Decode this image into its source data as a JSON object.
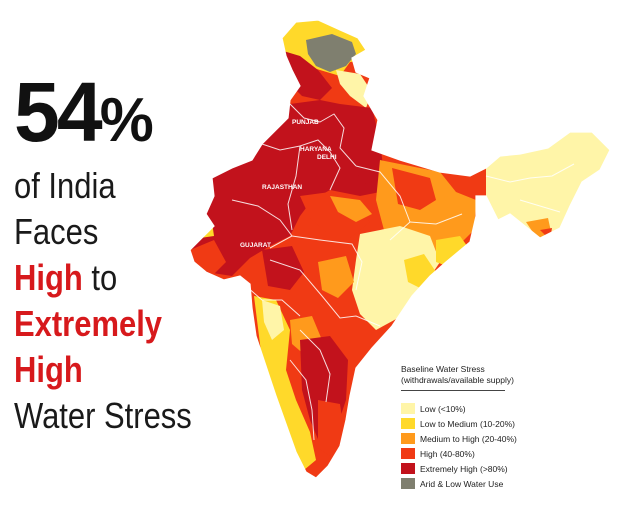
{
  "headline": {
    "stat_number": "54",
    "stat_symbol": "%",
    "line1": "of India",
    "line2": "Faces",
    "line3_red": "High",
    "line3_black": " to",
    "line4": "Extremely",
    "line5": "High",
    "line6": "Water Stress"
  },
  "map": {
    "state_labels": [
      "PUNJAB",
      "HARYANA",
      "DELHI",
      "RAJASTHAN",
      "GUJARAT"
    ]
  },
  "legend": {
    "title": "Baseline Water Stress",
    "subtitle": "(withdrawals/available supply)",
    "items": [
      {
        "label": "Low (<10%)",
        "color": "#fff5a8"
      },
      {
        "label": "Low to Medium (10-20%)",
        "color": "#ffd92a"
      },
      {
        "label": "Medium to High (20-40%)",
        "color": "#ff9a1c"
      },
      {
        "label": "High (40-80%)",
        "color": "#f03a14"
      },
      {
        "label": "Extremely High (>80%)",
        "color": "#c2121c"
      },
      {
        "label": "Arid & Low Water Use",
        "color": "#7f7f6f"
      }
    ]
  }
}
